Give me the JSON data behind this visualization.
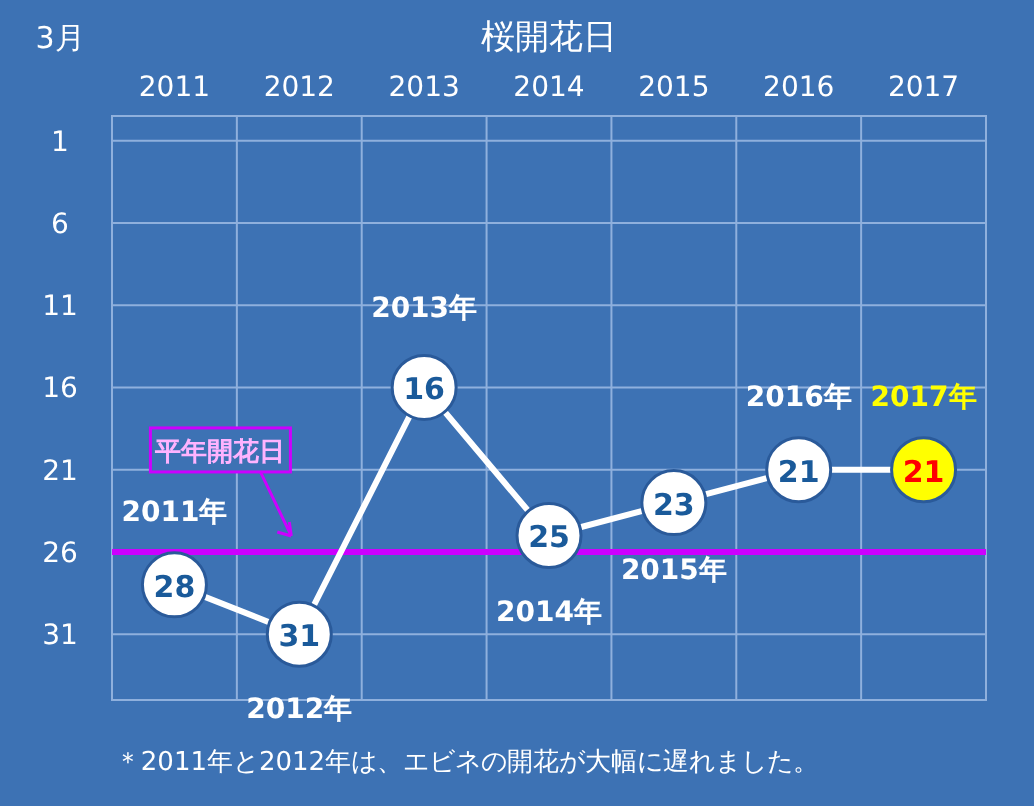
{
  "chart_data": {
    "type": "line",
    "title": "桜開花日",
    "ylabel": "3月",
    "categories": [
      "2011",
      "2012",
      "2013",
      "2014",
      "2015",
      "2016",
      "2017"
    ],
    "series": [
      {
        "color": "#ffffff",
        "values": [
          28,
          31,
          16,
          25,
          23,
          21,
          21
        ],
        "colors": [
          "#ffffff",
          "#ffffff",
          "#ffffff",
          "#ffffff",
          "#ffffff",
          "#ffffff",
          "#ffff00"
        ]
      }
    ],
    "ylim": [
      35,
      -0.5
    ],
    "yticks": [
      1,
      6,
      11,
      16,
      21,
      26,
      31
    ],
    "grid": true,
    "marker": "circle",
    "data_labels": true,
    "ref_lines": [
      {
        "axis": "y",
        "value": 26,
        "label": "平年開花日",
        "color": "#cc00ff"
      }
    ],
    "annotations": [
      "2011年",
      "2012年",
      "2013年",
      "2014年",
      "2015年",
      "2016年",
      "2017年",
      "＊2011年と2012年は、エビネの開花が大幅に遅れました。"
    ]
  }
}
